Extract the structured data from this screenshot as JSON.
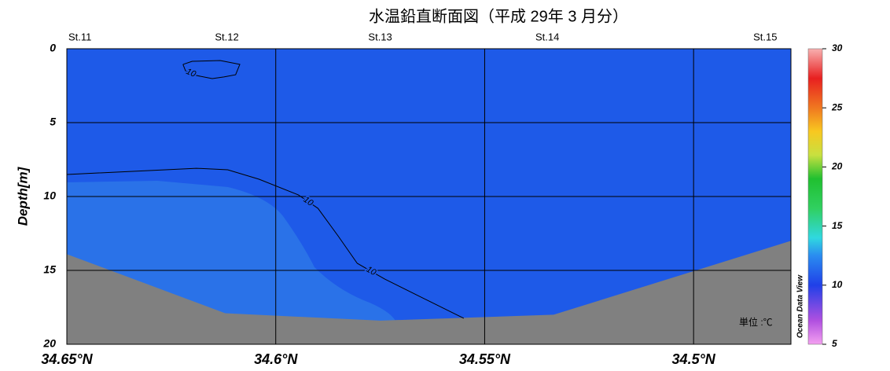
{
  "chart_data": {
    "type": "section",
    "title": "水温鉛直断面図（平成 29年 3 月分）",
    "ylabel": "Depth[m]",
    "unit": "単位 :℃",
    "field_color": "#1e5ae8",
    "bottom_color": "#808080",
    "xlim": [
      34.65,
      34.4767
    ],
    "xticks": [
      {
        "value": 34.65,
        "label": "34.65°N"
      },
      {
        "value": 34.6,
        "label": "34.6°N"
      },
      {
        "value": 34.55,
        "label": "34.55°N"
      },
      {
        "value": 34.5,
        "label": "34.5°N"
      }
    ],
    "ylim": [
      0,
      20
    ],
    "yticks": [
      0,
      5,
      10,
      15,
      20
    ],
    "grid": true,
    "stations": {
      "names": [
        "St.11",
        "St.12",
        "St.13",
        "St.14",
        "St.15"
      ],
      "x": [
        34.65,
        34.6117,
        34.575,
        34.535,
        34.48
      ]
    },
    "bottom": {
      "x": [
        34.65,
        34.6121,
        34.575,
        34.5335,
        34.4767
      ],
      "depth": [
        13.9,
        17.9,
        18.4,
        18.0,
        13.0
      ]
    },
    "contours": [
      {
        "level": 10,
        "x": [
          34.6222,
          34.62,
          34.6133,
          34.6086,
          34.6096,
          34.6124,
          34.6152,
          34.619,
          34.6216,
          34.6222
        ],
        "depth": [
          1.06,
          0.85,
          0.8,
          1.06,
          1.76,
          1.91,
          2.02,
          1.81,
          1.49,
          1.06
        ]
      },
      {
        "level": 10,
        "x": [
          34.65,
          34.619,
          34.6115,
          34.604,
          34.5946,
          34.5899,
          34.5851,
          34.5805,
          34.5739,
          34.5645,
          34.555
        ],
        "depth": [
          8.51,
          8.09,
          8.19,
          8.83,
          9.89,
          10.8,
          12.66,
          14.52,
          15.59,
          16.91,
          18.24
        ]
      }
    ],
    "colorbar": {
      "label": "Ocean Data View",
      "lim": [
        5,
        30
      ],
      "ticks": [
        5,
        10,
        15,
        20,
        25,
        30
      ]
    }
  }
}
